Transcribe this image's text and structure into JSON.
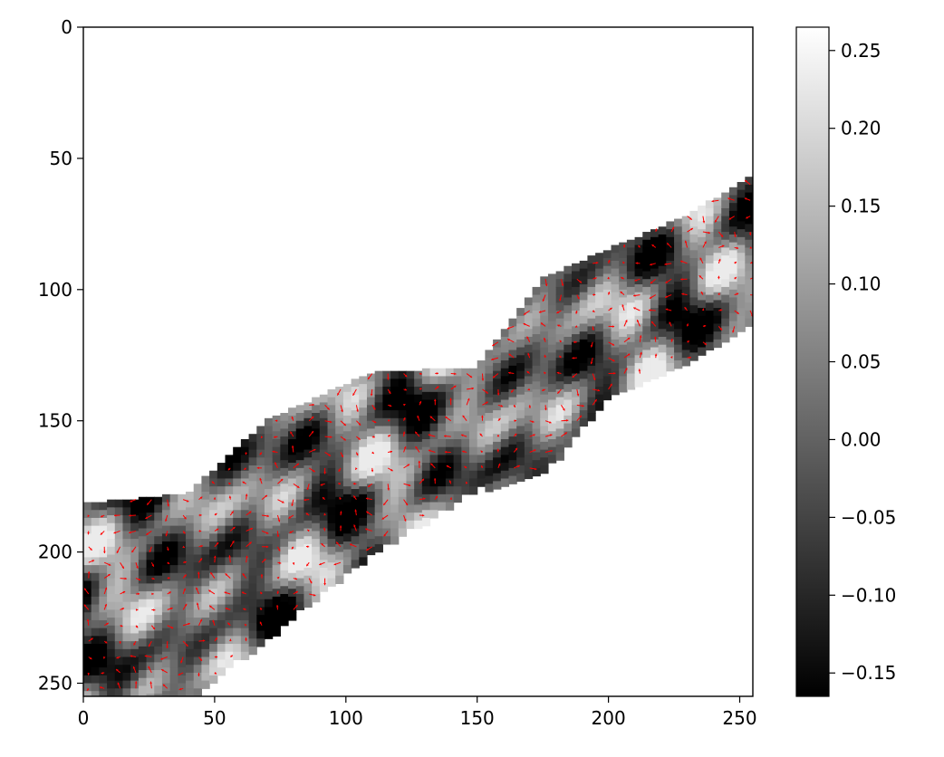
{
  "chart_data": {
    "type": "heatmap",
    "title": "",
    "xlabel": "",
    "ylabel": "",
    "xlim": [
      0,
      255
    ],
    "ylim": [
      255,
      0
    ],
    "x_ticks": [
      0,
      50,
      100,
      150,
      200,
      250
    ],
    "y_ticks": [
      0,
      50,
      100,
      150,
      200,
      250
    ],
    "x_tick_labels": [
      "0",
      "50",
      "100",
      "150",
      "200",
      "250"
    ],
    "y_tick_labels": [
      "0",
      "50",
      "100",
      "150",
      "200",
      "250"
    ],
    "colormap": "gray",
    "colorbar": {
      "range": [
        -0.165,
        0.265
      ],
      "ticks": [
        -0.15,
        -0.1,
        -0.05,
        0.0,
        0.05,
        0.1,
        0.15,
        0.2,
        0.25
      ],
      "tick_labels": [
        "−0.15",
        "−0.10",
        "−0.05",
        "0.00",
        "0.05",
        "0.10",
        "0.15",
        "0.20",
        "0.25"
      ]
    },
    "masked_region_color": "#ffffff",
    "overlay": {
      "type": "quiver",
      "color": "#ff0000",
      "grid_spacing": 6
    },
    "band": {
      "description_points": [
        {
          "x": 0,
          "y_top": 182,
          "y_bottom": 255
        },
        {
          "x": 40,
          "y_top": 178,
          "y_bottom": 255
        },
        {
          "x": 70,
          "y_top": 150,
          "y_bottom": 232
        },
        {
          "x": 110,
          "y_top": 132,
          "y_bottom": 200
        },
        {
          "x": 150,
          "y_top": 130,
          "y_bottom": 175
        },
        {
          "x": 175,
          "y_top": 96,
          "y_bottom": 170
        },
        {
          "x": 200,
          "y_top": 85,
          "y_bottom": 140
        },
        {
          "x": 230,
          "y_top": 72,
          "y_bottom": 128
        },
        {
          "x": 255,
          "y_top": 57,
          "y_bottom": 110
        }
      ]
    }
  }
}
